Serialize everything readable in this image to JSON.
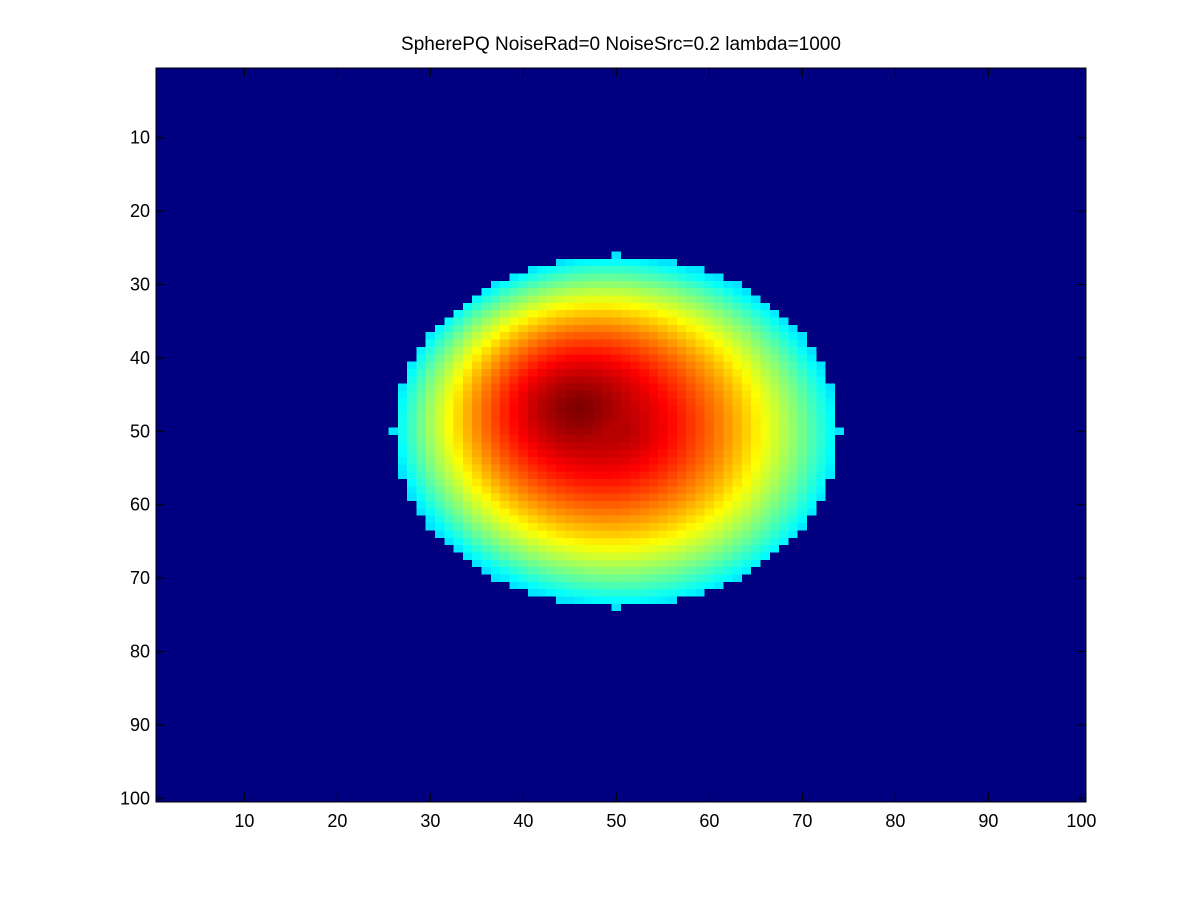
{
  "chart_data": {
    "type": "heatmap",
    "title": "SpherePQ NoiseRad=0 NoiseSrc=0.2 lambda=1000",
    "xlabel": "",
    "ylabel": "",
    "colormap": "jet",
    "grid": false,
    "y_reversed": true,
    "xlim": [
      0.5,
      100.5
    ],
    "ylim": [
      0.5,
      100.5
    ],
    "xticks": [
      10,
      20,
      30,
      40,
      50,
      60,
      70,
      80,
      90,
      100
    ],
    "yticks": [
      10,
      20,
      30,
      40,
      50,
      60,
      70,
      80,
      90,
      100
    ],
    "grid_size": [
      100,
      100
    ],
    "value_range": [
      0,
      1
    ],
    "background_value": 0,
    "blob": {
      "peak_center": [
        46,
        47
      ],
      "outer_center": [
        50,
        50
      ],
      "outer_radius_x": 24,
      "outer_radius_y": 24,
      "peak_value": 1,
      "edge_value": 0.35
    }
  }
}
